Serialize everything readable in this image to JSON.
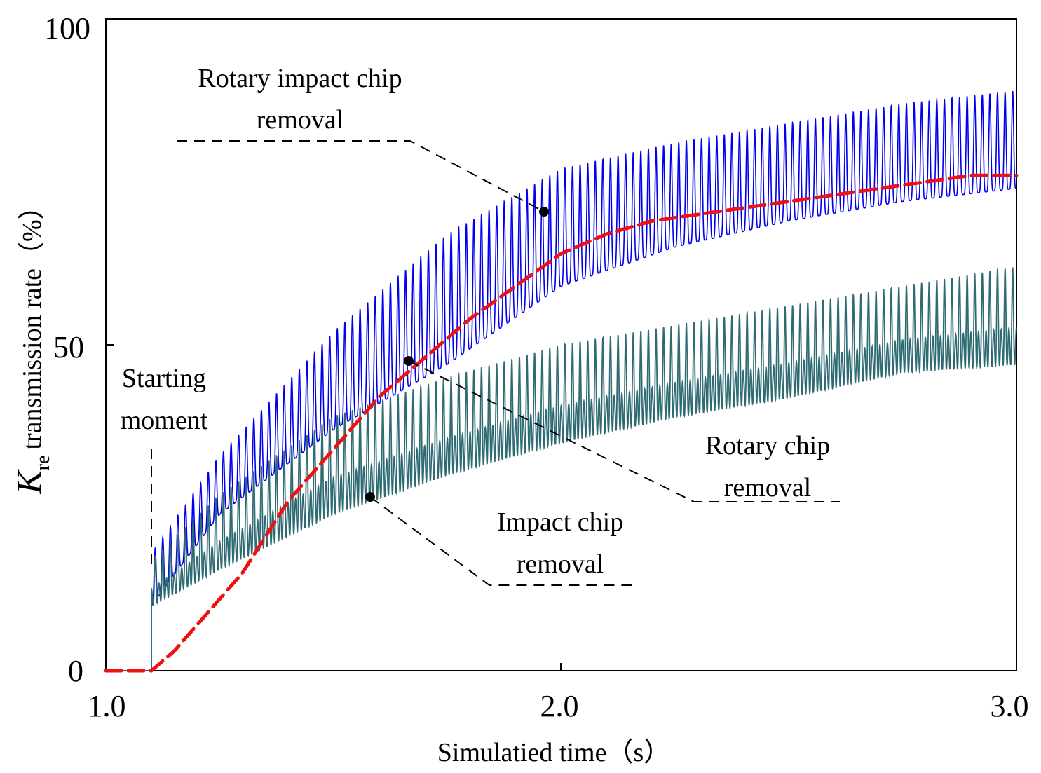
{
  "chart_data": {
    "type": "line",
    "title": "",
    "xlabel": "Simulatied time（s）",
    "ylabel": {
      "symbol": "K",
      "subscript": "re",
      "rest": "transmission rate（%）"
    },
    "xlim": [
      1.0,
      3.0
    ],
    "ylim": [
      0,
      100
    ],
    "x_ticks": [
      "1.0",
      "2.0",
      "3.0"
    ],
    "y_ticks": [
      "0",
      "50",
      "100"
    ],
    "x_tick_values": [
      1.0,
      2.0,
      3.0
    ],
    "y_tick_values": [
      0,
      50,
      100
    ],
    "start_time": 1.1,
    "oscillation_frequency_hz": 60,
    "series": [
      {
        "name": "Rotary impact chip removal",
        "style": "oscillating",
        "color": "#0000ee",
        "x": [
          1.1,
          1.25,
          1.5,
          1.75,
          2.0,
          2.25,
          2.5,
          2.75,
          3.0
        ],
        "low": [
          10,
          24,
          37,
          47,
          59,
          65,
          69,
          72,
          74
        ],
        "high": [
          18,
          33,
          52,
          67,
          77,
          81,
          84,
          87,
          89
        ]
      },
      {
        "name": "Impact chip removal",
        "style": "oscillating",
        "color": "#2e6b72",
        "x": [
          1.1,
          1.25,
          1.5,
          1.75,
          2.0,
          2.25,
          2.5,
          2.75,
          3.0
        ],
        "low": [
          9,
          14,
          22,
          28,
          33,
          37,
          40,
          44,
          45
        ],
        "high": [
          17,
          27,
          39,
          45,
          50,
          53,
          56,
          59,
          62
        ]
      },
      {
        "name": "Rotary chip removal",
        "style": "dashed",
        "color": "#ee1111",
        "x": [
          1.0,
          1.1,
          1.15,
          1.2,
          1.3,
          1.4,
          1.5,
          1.55,
          1.6,
          1.7,
          1.8,
          1.9,
          2.0,
          2.1,
          2.2,
          2.3,
          2.4,
          2.5,
          2.6,
          2.7,
          2.8,
          2.9,
          3.0
        ],
        "y": [
          0,
          0,
          3,
          7,
          15,
          26,
          34,
          38,
          42,
          48,
          54,
          59,
          64,
          67,
          69,
          70,
          71,
          72,
          73,
          74,
          75,
          76,
          76
        ]
      }
    ],
    "annotations": [
      {
        "name": "annotation-rotary-impact",
        "lines": [
          "Rotary impact chip",
          "removal"
        ],
        "series": "Rotary impact chip removal",
        "point": [
          1.96,
          70.3
        ]
      },
      {
        "name": "annotation-rotary",
        "lines": [
          "Rotary chip",
          "removal"
        ],
        "series": "Rotary chip removal",
        "point": [
          1.67,
          47.4
        ]
      },
      {
        "name": "annotation-impact",
        "lines": [
          "Impact chip",
          "removal"
        ],
        "series": "Impact chip removal",
        "point": [
          1.58,
          26.5
        ]
      },
      {
        "name": "annotation-start",
        "lines": [
          "Starting",
          "moment"
        ],
        "series": "",
        "point": [
          1.1,
          17
        ]
      }
    ]
  }
}
